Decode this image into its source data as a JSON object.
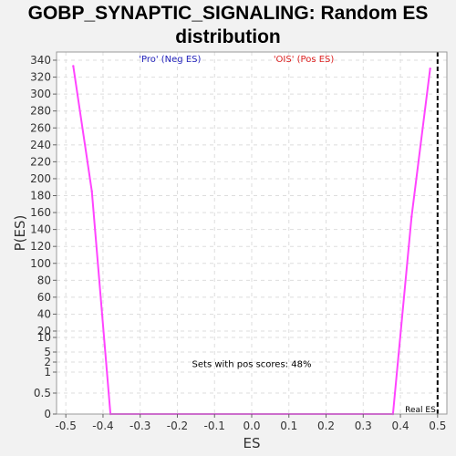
{
  "chart_data": {
    "type": "line",
    "title": "GOBP_SYNAPTIC_SIGNALING: Random ES distribution",
    "title_lines": [
      "GOBP_SYNAPTIC_SIGNALING: Random ES",
      "distribution"
    ],
    "xlabel": "ES",
    "ylabel": "P(ES)",
    "xlim": [
      -0.525,
      0.525
    ],
    "ylim": [
      0,
      350
    ],
    "x_ticks": [
      -0.5,
      -0.4,
      -0.3,
      -0.2,
      -0.1,
      0.0,
      0.1,
      0.2,
      0.3,
      0.4,
      0.5
    ],
    "x_tick_labels": [
      "-0.5",
      "-0.4",
      "-0.3",
      "-0.2",
      "-0.1",
      "0.0",
      "0.1",
      "0.2",
      "0.3",
      "0.4",
      "0.5"
    ],
    "y_ticks": [
      0,
      0.5,
      1,
      2,
      5,
      10,
      20,
      40,
      60,
      80,
      100,
      120,
      140,
      160,
      180,
      200,
      220,
      240,
      260,
      280,
      300,
      320,
      340
    ],
    "y_tick_labels": [
      "0",
      "0.5",
      "1",
      "2",
      "5",
      "10",
      "20",
      "40",
      "60",
      "80",
      "100",
      "120",
      "140",
      "160",
      "180",
      "200",
      "220",
      "240",
      "260",
      "280",
      "300",
      "320",
      "340"
    ],
    "grid": true,
    "series": [
      {
        "color": "#ff44ff",
        "x": [
          -0.48,
          -0.43,
          -0.38,
          0.38,
          0.43,
          0.48
        ],
        "y": [
          333,
          185,
          0,
          0,
          155,
          330
        ]
      }
    ],
    "real_es": {
      "x": 0.5,
      "label": "Real ES",
      "color": "#000000"
    },
    "annotations": [
      {
        "text": "'Pro' (Neg ES)",
        "color": "#2222bb",
        "x": -0.22,
        "y": 338
      },
      {
        "text": "'OIS' (Pos ES)",
        "color": "#dd2222",
        "x": 0.14,
        "y": 338
      },
      {
        "text": "Sets with pos scores: 48%",
        "color": "#000000",
        "x": 0.0,
        "y": 1.5
      }
    ]
  }
}
